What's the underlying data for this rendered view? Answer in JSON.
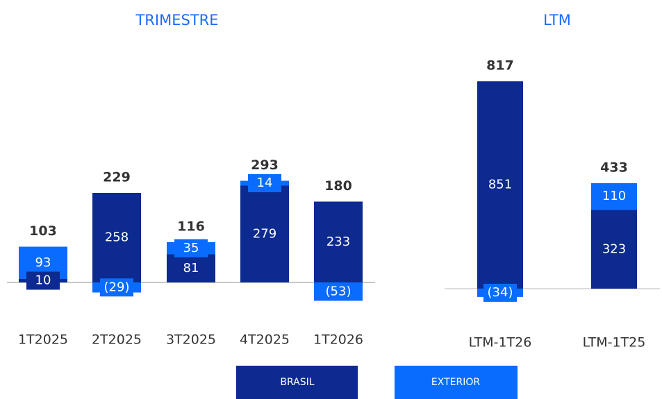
{
  "chart_data": [
    {
      "type": "stacked-bar",
      "title": "TRIMESTRE",
      "categories": [
        "1T2025",
        "2T2025",
        "3T2025",
        "4T2025",
        "1T2026"
      ],
      "series": [
        {
          "name": "BRASIL",
          "color": "#0c2a8f",
          "values": [
            10,
            258,
            81,
            279,
            233
          ]
        },
        {
          "name": "EXTERIOR",
          "color": "#0a6cff",
          "values": [
            93,
            -29,
            35,
            14,
            -53
          ],
          "value_labels": [
            "93",
            "(29)",
            "35",
            "14",
            "(53)"
          ]
        }
      ],
      "totals": [
        103,
        229,
        116,
        293,
        180
      ],
      "ylim": [
        -60,
        320
      ]
    },
    {
      "type": "stacked-bar",
      "title": "LTM",
      "categories": [
        "LTM-1T26",
        "LTM-1T25"
      ],
      "series": [
        {
          "color": "#0c2a8f",
          "values": [
            851,
            323
          ]
        },
        {
          "color": "#0a6cff",
          "values": [
            -34,
            110
          ],
          "value_labels": [
            "(34)",
            "110"
          ]
        }
      ],
      "totals": [
        817,
        433
      ],
      "ylim": [
        -40,
        880
      ]
    }
  ]
}
